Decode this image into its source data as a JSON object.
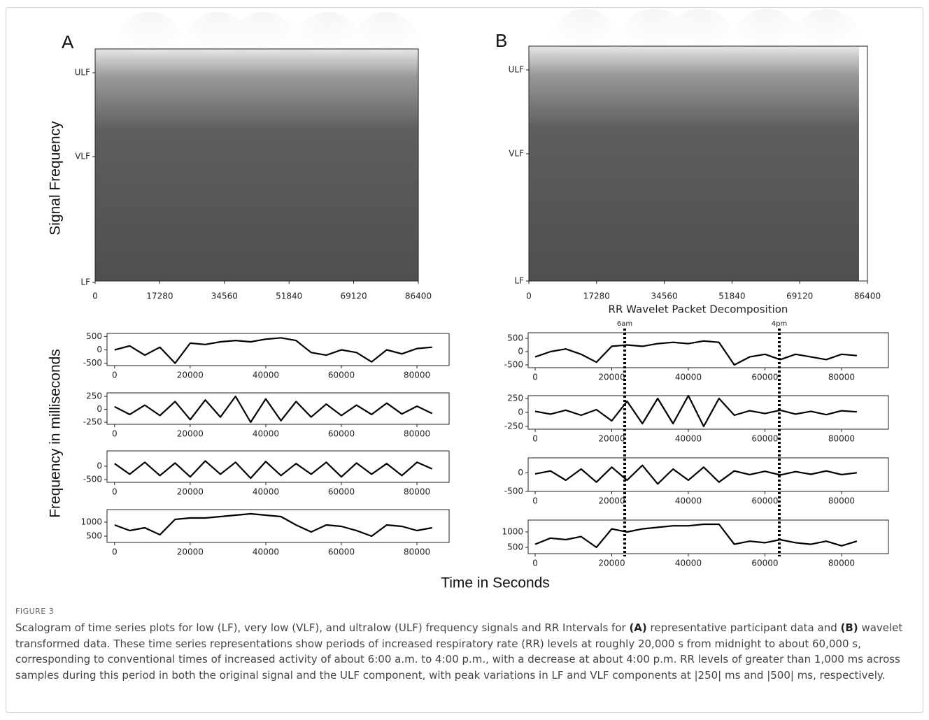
{
  "figure_label_a": "A",
  "figure_label_b": "B",
  "ylabel_top": "Signal Frequency",
  "ylabel_bottom": "Frequency in milliseconds",
  "xlabel": "Time in Seconds",
  "panels": [
    {
      "label": "A",
      "scalogram": {
        "yticks": [
          "ULF",
          "VLF",
          "LF"
        ],
        "xlim": [
          0,
          86400
        ],
        "xticks": [
          0,
          17280,
          34560,
          51840,
          69120,
          86400
        ]
      },
      "xlim": [
        -2000,
        88500
      ],
      "xticks": [
        0,
        20000,
        40000,
        60000,
        80000
      ],
      "time": [
        0,
        4000,
        8000,
        12000,
        16000,
        20000,
        24000,
        28000,
        32000,
        36000,
        40000,
        44000,
        48000,
        52000,
        56000,
        60000,
        64000,
        68000,
        72000,
        76000,
        80000,
        84000
      ],
      "subplots": [
        {
          "ylim": [
            -590,
            615
          ],
          "yticks": [
            500,
            0,
            -500
          ],
          "values": [
            0,
            150,
            -200,
            100,
            -500,
            250,
            200,
            300,
            350,
            300,
            400,
            450,
            350,
            -100,
            -200,
            0,
            -100,
            -450,
            0,
            -150,
            50,
            100
          ]
        },
        {
          "ylim": [
            -290,
            318
          ],
          "yticks": [
            250,
            0,
            -250
          ],
          "values": [
            50,
            -100,
            80,
            -120,
            150,
            -200,
            180,
            -150,
            250,
            -250,
            200,
            -220,
            150,
            -150,
            100,
            -120,
            80,
            -100,
            120,
            -90,
            60,
            -80
          ]
        },
        {
          "ylim": [
            -605,
            579
          ],
          "yticks": [
            0,
            -500
          ],
          "values": [
            100,
            -300,
            150,
            -350,
            120,
            -400,
            200,
            -300,
            150,
            -450,
            180,
            -350,
            100,
            -300,
            150,
            -400,
            120,
            -300,
            100,
            -350,
            150,
            -100
          ]
        },
        {
          "ylim": [
            275,
            1450
          ],
          "yticks": [
            1000,
            500
          ],
          "values": [
            900,
            700,
            800,
            550,
            1100,
            1150,
            1150,
            1200,
            1250,
            1300,
            1250,
            1200,
            900,
            650,
            900,
            850,
            700,
            500,
            900,
            850,
            700,
            800
          ]
        }
      ]
    },
    {
      "label": "B",
      "scalogram": {
        "yticks": [
          "ULF",
          "VLF",
          "LF"
        ],
        "xlim": [
          0,
          86400
        ],
        "xticks": [
          0,
          17280,
          34560,
          51840,
          69120,
          86400
        ],
        "title": "RR Wavelet Packet Decomposition"
      },
      "annotations": [
        {
          "label": "6am",
          "x": 23380
        },
        {
          "label": "4pm",
          "x": 63740
        }
      ],
      "xlim": [
        -1830,
        92240
      ],
      "xticks": [
        0,
        20000,
        40000,
        60000,
        80000
      ],
      "time": [
        0,
        4000,
        8000,
        12000,
        16000,
        20000,
        24000,
        28000,
        32000,
        36000,
        40000,
        44000,
        48000,
        52000,
        56000,
        60000,
        64000,
        68000,
        72000,
        76000,
        80000,
        84000
      ],
      "subplots": [
        {
          "ylim": [
            -605,
            711
          ],
          "yticks": [
            500,
            0,
            -500
          ],
          "values": [
            -200,
            0,
            100,
            -100,
            -400,
            200,
            250,
            200,
            300,
            350,
            300,
            400,
            350,
            -500,
            -200,
            -100,
            -300,
            -100,
            -200,
            -300,
            -100,
            -150
          ]
        },
        {
          "ylim": [
            -300,
            300
          ],
          "yticks": [
            250,
            0,
            -250
          ],
          "values": [
            20,
            -30,
            40,
            -50,
            50,
            -150,
            200,
            -200,
            250,
            -200,
            300,
            -250,
            250,
            -50,
            30,
            -20,
            40,
            -30,
            20,
            -40,
            30,
            10
          ]
        },
        {
          "ylim": [
            -500,
            400
          ],
          "yticks": [
            0,
            -500
          ],
          "values": [
            -30,
            50,
            -200,
            100,
            -250,
            150,
            -200,
            200,
            -300,
            100,
            -200,
            150,
            -250,
            50,
            -50,
            40,
            -60,
            30,
            -40,
            50,
            -50,
            0
          ]
        },
        {
          "ylim": [
            295,
            1386
          ],
          "yticks": [
            1000,
            500
          ],
          "values": [
            600,
            800,
            750,
            850,
            500,
            1100,
            1000,
            1100,
            1150,
            1200,
            1200,
            1250,
            1250,
            600,
            700,
            650,
            750,
            650,
            600,
            700,
            550,
            700
          ]
        }
      ]
    }
  ],
  "caption": {
    "label": "FIGURE 3",
    "parts": [
      "Scalogram of time series plots for low (LF), very low (VLF), and ultralow (ULF) frequency signals and RR Intervals for ",
      "(A)",
      " representative participant data and ",
      "(B)",
      " wavelet transformed data. These time series representations show periods of increased respiratory rate (RR) levels at roughly 20,000 s from midnight to about 60,000 s, corresponding to conventional times of increased activity of about 6:00 a.m. to 4:00 p.m., with a decrease at about 4:00 p.m. RR levels of greater than 1,000 ms across samples during this period in both the original signal and the ULF component, with peak variations in LF and VLF components at |250| ms and |500| ms, respectively."
    ]
  }
}
